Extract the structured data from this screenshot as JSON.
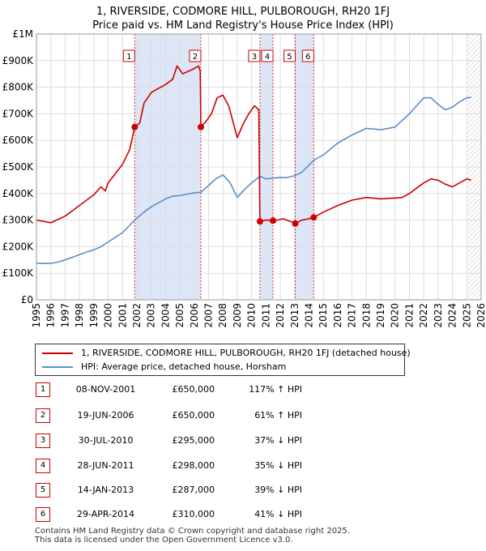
{
  "title_line1": "1, RIVERSIDE, CODMORE HILL, PULBOROUGH, RH20 1FJ",
  "title_line2": "Price paid vs. HM Land Registry's House Price Index (HPI)",
  "legend": {
    "red_label": "1, RIVERSIDE, CODMORE HILL, PULBOROUGH, RH20 1FJ (detached house)",
    "blue_label": "HPI: Average price, detached house, Horsham"
  },
  "colors": {
    "red": "#cc0000",
    "blue": "#5b8ec7",
    "band": "#dde6f7",
    "grid": "#dddddd"
  },
  "sales": [
    {
      "num": "1",
      "date": "08-NOV-2001",
      "price": "£650,000",
      "hpi": "117% ↑ HPI"
    },
    {
      "num": "2",
      "date": "19-JUN-2006",
      "price": "£650,000",
      "hpi": "61% ↑ HPI"
    },
    {
      "num": "3",
      "date": "30-JUL-2010",
      "price": "£295,000",
      "hpi": "37% ↓ HPI"
    },
    {
      "num": "4",
      "date": "28-JUN-2011",
      "price": "£298,000",
      "hpi": "35% ↓ HPI"
    },
    {
      "num": "5",
      "date": "14-JAN-2013",
      "price": "£287,000",
      "hpi": "39% ↓ HPI"
    },
    {
      "num": "6",
      "date": "29-APR-2014",
      "price": "£310,000",
      "hpi": "41% ↓ HPI"
    }
  ],
  "footer": {
    "line1": "Contains HM Land Registry data © Crown copyright and database right 2025.",
    "line2": "This data is licensed under the Open Government Licence v3.0."
  },
  "chart_data": {
    "type": "line",
    "title": "1, RIVERSIDE, CODMORE HILL, PULBOROUGH, RH20 1FJ Price paid vs. HM Land Registry's House Price Index (HPI)",
    "xlabel": "",
    "ylabel": "",
    "xlim": [
      1995,
      2026
    ],
    "ylim": [
      0,
      1000000
    ],
    "yticks": [
      {
        "value": 0,
        "label": "£0"
      },
      {
        "value": 100000,
        "label": "£100K"
      },
      {
        "value": 200000,
        "label": "£200K"
      },
      {
        "value": 300000,
        "label": "£300K"
      },
      {
        "value": 400000,
        "label": "£400K"
      },
      {
        "value": 500000,
        "label": "£500K"
      },
      {
        "value": 600000,
        "label": "£600K"
      },
      {
        "value": 700000,
        "label": "£700K"
      },
      {
        "value": 800000,
        "label": "£800K"
      },
      {
        "value": 900000,
        "label": "£900K"
      },
      {
        "value": 1000000,
        "label": "£1M"
      }
    ],
    "xticks": [
      1995,
      1996,
      1997,
      1998,
      1999,
      2000,
      2001,
      2002,
      2003,
      2004,
      2005,
      2006,
      2007,
      2008,
      2009,
      2010,
      2011,
      2012,
      2013,
      2014,
      2015,
      2016,
      2017,
      2018,
      2019,
      2020,
      2021,
      2022,
      2023,
      2024,
      2025,
      2026
    ],
    "bands": [
      [
        2001.85,
        2006.46
      ],
      [
        2010.58,
        2011.49
      ],
      [
        2013.04,
        2014.33
      ]
    ],
    "future_start": 2025.05,
    "sale_markers": [
      {
        "label": "1",
        "x": 2001.85,
        "y": 650000
      },
      {
        "label": "2",
        "x": 2006.46,
        "y": 650000
      },
      {
        "label": "3",
        "x": 2010.58,
        "y": 295000
      },
      {
        "label": "4",
        "x": 2011.49,
        "y": 298000
      },
      {
        "label": "5",
        "x": 2013.04,
        "y": 287000
      },
      {
        "label": "6",
        "x": 2014.33,
        "y": 310000
      }
    ],
    "series": [
      {
        "name": "1, RIVERSIDE, CODMORE HILL, PULBOROUGH, RH20 1FJ (detached house)",
        "color": "#cc0000",
        "points": [
          [
            1995.0,
            300000
          ],
          [
            1995.5,
            295000
          ],
          [
            1996.0,
            290000
          ],
          [
            1996.5,
            302000
          ],
          [
            1997.0,
            315000
          ],
          [
            1997.5,
            335000
          ],
          [
            1998.0,
            355000
          ],
          [
            1998.5,
            375000
          ],
          [
            1999.0,
            395000
          ],
          [
            1999.5,
            425000
          ],
          [
            1999.8,
            410000
          ],
          [
            2000.0,
            440000
          ],
          [
            2000.5,
            475000
          ],
          [
            2001.0,
            510000
          ],
          [
            2001.5,
            565000
          ],
          [
            2001.85,
            650000
          ],
          [
            2002.2,
            665000
          ],
          [
            2002.5,
            740000
          ],
          [
            2003.0,
            780000
          ],
          [
            2003.5,
            795000
          ],
          [
            2004.0,
            810000
          ],
          [
            2004.5,
            830000
          ],
          [
            2004.8,
            880000
          ],
          [
            2005.2,
            850000
          ],
          [
            2005.6,
            860000
          ],
          [
            2006.0,
            870000
          ],
          [
            2006.3,
            880000
          ],
          [
            2006.42,
            860000
          ],
          [
            2006.46,
            650000
          ],
          [
            2006.8,
            670000
          ],
          [
            2007.2,
            700000
          ],
          [
            2007.6,
            760000
          ],
          [
            2008.0,
            770000
          ],
          [
            2008.4,
            730000
          ],
          [
            2008.8,
            650000
          ],
          [
            2009.0,
            610000
          ],
          [
            2009.4,
            660000
          ],
          [
            2009.8,
            700000
          ],
          [
            2010.2,
            730000
          ],
          [
            2010.5,
            715000
          ],
          [
            2010.58,
            295000
          ],
          [
            2011.0,
            300000
          ],
          [
            2011.49,
            298000
          ],
          [
            2011.8,
            300000
          ],
          [
            2012.2,
            305000
          ],
          [
            2012.7,
            295000
          ],
          [
            2013.04,
            287000
          ],
          [
            2013.5,
            300000
          ],
          [
            2014.0,
            305000
          ],
          [
            2014.33,
            310000
          ],
          [
            2015.0,
            330000
          ],
          [
            2016.0,
            355000
          ],
          [
            2017.0,
            375000
          ],
          [
            2018.0,
            385000
          ],
          [
            2019.0,
            380000
          ],
          [
            2020.0,
            383000
          ],
          [
            2020.5,
            385000
          ],
          [
            2021.0,
            400000
          ],
          [
            2021.5,
            420000
          ],
          [
            2022.0,
            440000
          ],
          [
            2022.5,
            455000
          ],
          [
            2023.0,
            450000
          ],
          [
            2023.5,
            435000
          ],
          [
            2024.0,
            425000
          ],
          [
            2024.5,
            440000
          ],
          [
            2025.0,
            455000
          ],
          [
            2025.3,
            450000
          ]
        ]
      },
      {
        "name": "HPI: Average price, detached house, Horsham",
        "color": "#5b8ec7",
        "points": [
          [
            1995.0,
            138000
          ],
          [
            1995.5,
            137000
          ],
          [
            1996.0,
            137000
          ],
          [
            1996.5,
            142000
          ],
          [
            1997.0,
            150000
          ],
          [
            1997.5,
            160000
          ],
          [
            1998.0,
            170000
          ],
          [
            1998.5,
            180000
          ],
          [
            1999.0,
            188000
          ],
          [
            1999.5,
            200000
          ],
          [
            2000.0,
            218000
          ],
          [
            2000.5,
            235000
          ],
          [
            2001.0,
            253000
          ],
          [
            2001.85,
            300000
          ],
          [
            2002.5,
            330000
          ],
          [
            2003.0,
            350000
          ],
          [
            2003.5,
            365000
          ],
          [
            2004.0,
            380000
          ],
          [
            2004.5,
            390000
          ],
          [
            2005.0,
            392000
          ],
          [
            2005.5,
            398000
          ],
          [
            2006.0,
            402000
          ],
          [
            2006.46,
            405000
          ],
          [
            2007.0,
            430000
          ],
          [
            2007.5,
            455000
          ],
          [
            2008.0,
            470000
          ],
          [
            2008.5,
            440000
          ],
          [
            2009.0,
            385000
          ],
          [
            2009.5,
            415000
          ],
          [
            2010.0,
            440000
          ],
          [
            2010.58,
            465000
          ],
          [
            2011.0,
            455000
          ],
          [
            2011.49,
            458000
          ],
          [
            2012.0,
            460000
          ],
          [
            2012.5,
            460000
          ],
          [
            2013.04,
            468000
          ],
          [
            2013.5,
            480000
          ],
          [
            2014.33,
            525000
          ],
          [
            2015.0,
            545000
          ],
          [
            2016.0,
            590000
          ],
          [
            2017.0,
            620000
          ],
          [
            2018.0,
            645000
          ],
          [
            2019.0,
            640000
          ],
          [
            2020.0,
            650000
          ],
          [
            2021.0,
            700000
          ],
          [
            2021.5,
            730000
          ],
          [
            2022.0,
            760000
          ],
          [
            2022.5,
            760000
          ],
          [
            2023.0,
            735000
          ],
          [
            2023.5,
            715000
          ],
          [
            2024.0,
            725000
          ],
          [
            2024.5,
            745000
          ],
          [
            2025.0,
            760000
          ],
          [
            2025.3,
            762000
          ]
        ]
      }
    ]
  }
}
